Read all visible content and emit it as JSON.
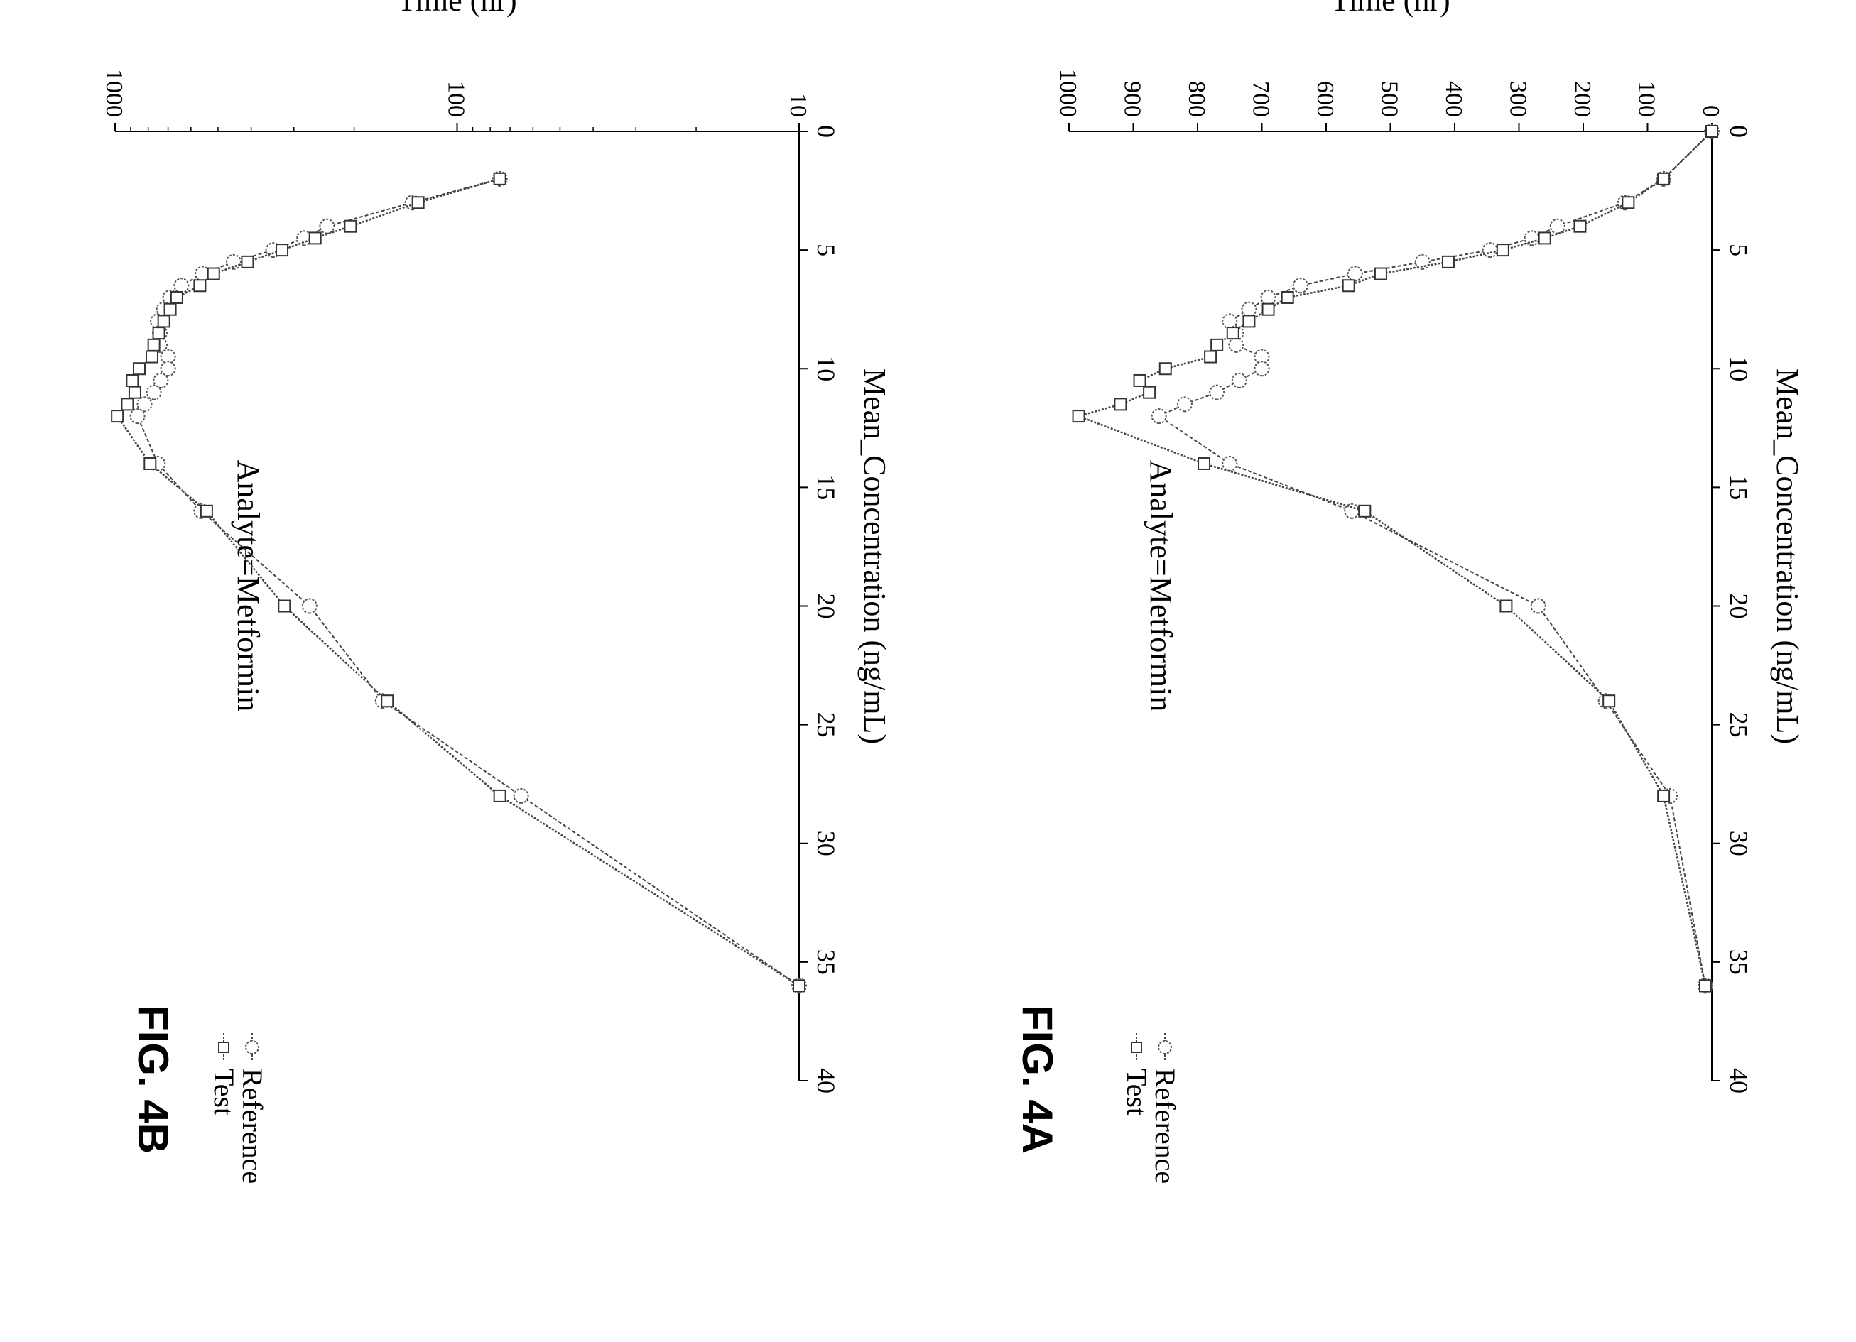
{
  "chart_data": [
    {
      "type": "line",
      "figure_label": "FIG. 4A",
      "annotation": "Analyte=Metformin",
      "xlabel": "Time (hr)",
      "ylabel": "Mean_Concentration (ng/mL)",
      "xlim": [
        0,
        40
      ],
      "ylim": [
        0,
        1000
      ],
      "yscale": "linear",
      "xticks": [
        0,
        5,
        10,
        15,
        20,
        25,
        30,
        35,
        40
      ],
      "yticks": [
        0,
        100,
        200,
        300,
        400,
        500,
        600,
        700,
        800,
        900,
        1000
      ],
      "xtick_labels": [
        "0",
        "5",
        "10",
        "15",
        "20",
        "25",
        "30",
        "35",
        "40"
      ],
      "ytick_labels": [
        "0",
        "100",
        "200",
        "300",
        "400",
        "500",
        "600",
        "700",
        "800",
        "900",
        "1000"
      ],
      "grid": false,
      "legend_position": "bottom",
      "series": [
        {
          "name": "Reference",
          "marker": "circle",
          "line_style": "dotted",
          "x": [
            0,
            2,
            3,
            4,
            4.5,
            5,
            5.5,
            6,
            6.5,
            7,
            7.5,
            8,
            8.5,
            9,
            9.5,
            10,
            10.5,
            11,
            11.5,
            12,
            14,
            16,
            20,
            24,
            28,
            36
          ],
          "y": [
            0,
            75,
            135,
            240,
            280,
            345,
            450,
            555,
            640,
            690,
            720,
            750,
            740,
            740,
            700,
            700,
            735,
            770,
            820,
            860,
            750,
            560,
            270,
            165,
            65,
            10
          ]
        },
        {
          "name": "Test",
          "marker": "square",
          "line_style": "dotted",
          "x": [
            0,
            2,
            3,
            4,
            4.5,
            5,
            5.5,
            6,
            6.5,
            7,
            7.5,
            8,
            8.5,
            9,
            9.5,
            10,
            10.5,
            11,
            11.5,
            12,
            14,
            16,
            20,
            24,
            28,
            36
          ],
          "y": [
            0,
            75,
            130,
            205,
            260,
            325,
            410,
            515,
            565,
            660,
            690,
            720,
            745,
            770,
            780,
            850,
            890,
            875,
            920,
            985,
            790,
            540,
            320,
            160,
            75,
            10
          ]
        }
      ]
    },
    {
      "type": "line",
      "figure_label": "FIG. 4B",
      "annotation": "Analyte=Metformin",
      "xlabel": "Time (hr)",
      "ylabel": "Mean_Concentration (ng/mL)",
      "xlim": [
        0,
        40
      ],
      "ylim": [
        10,
        1000
      ],
      "yscale": "log",
      "xticks": [
        0,
        5,
        10,
        15,
        20,
        25,
        30,
        35,
        40
      ],
      "yticks": [
        10,
        100,
        1000
      ],
      "xtick_labels": [
        "0",
        "5",
        "10",
        "15",
        "20",
        "25",
        "30",
        "35",
        "40"
      ],
      "ytick_labels": [
        "10",
        "100",
        "1000"
      ],
      "grid": false,
      "legend_position": "bottom",
      "series": [
        {
          "name": "Reference",
          "marker": "circle",
          "line_style": "dotted",
          "x": [
            2,
            3,
            4,
            4.5,
            5,
            5.5,
            6,
            6.5,
            7,
            7.5,
            8,
            8.5,
            9,
            9.5,
            10,
            10.5,
            11,
            11.5,
            12,
            14,
            16,
            20,
            24,
            28,
            36
          ],
          "y": [
            75,
            135,
            240,
            280,
            345,
            450,
            555,
            640,
            690,
            720,
            750,
            740,
            740,
            700,
            700,
            735,
            770,
            820,
            860,
            750,
            560,
            270,
            165,
            65,
            10
          ]
        },
        {
          "name": "Test",
          "marker": "square",
          "line_style": "dotted",
          "x": [
            2,
            3,
            4,
            4.5,
            5,
            5.5,
            6,
            6.5,
            7,
            7.5,
            8,
            8.5,
            9,
            9.5,
            10,
            10.5,
            11,
            11.5,
            12,
            14,
            16,
            20,
            24,
            28,
            36
          ],
          "y": [
            75,
            130,
            205,
            260,
            325,
            410,
            515,
            565,
            660,
            690,
            720,
            745,
            770,
            780,
            850,
            890,
            875,
            920,
            985,
            790,
            540,
            320,
            160,
            75,
            10
          ]
        }
      ]
    }
  ]
}
